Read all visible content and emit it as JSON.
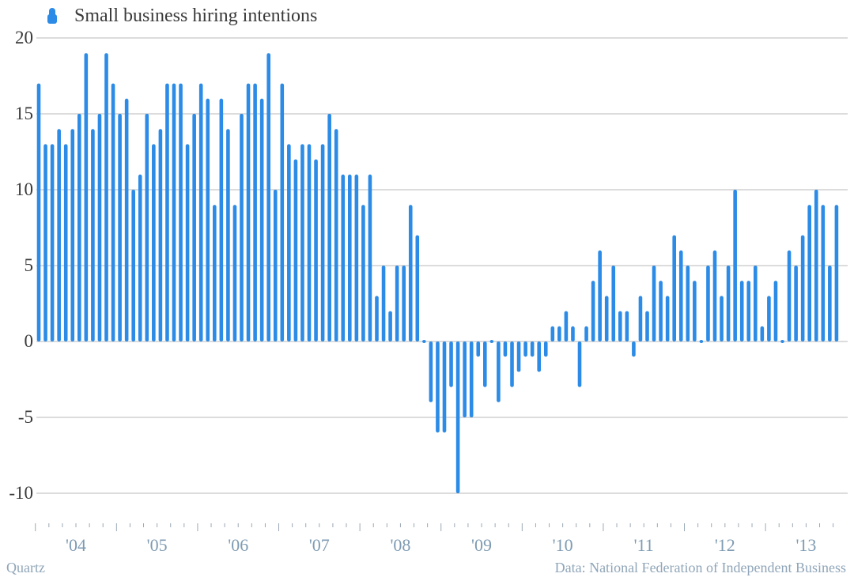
{
  "colors": {
    "bar": "#2b8be6",
    "grid": "#b9b9b9",
    "ytick": "#3a3a3a",
    "xtick": "#7e9bb3",
    "footer": "#8fa5b8"
  },
  "footer": {
    "brand": "Quartz",
    "source": "Data: National Federation of Independent Business"
  },
  "chart_data": {
    "type": "bar",
    "title": "",
    "xlabel": "",
    "ylabel": "",
    "ylim": [
      -10,
      20
    ],
    "yticks": [
      20,
      15,
      10,
      5,
      0,
      -5,
      -10
    ],
    "ytick_labels": [
      "20",
      "15",
      "10",
      "5",
      "0",
      "-5",
      "-10"
    ],
    "grid": true,
    "legend": "top-left",
    "xtick_labels": [
      "'04",
      "'05",
      "'06",
      "'07",
      "'08",
      "'09",
      "'10",
      "'11",
      "'12",
      "'13"
    ],
    "series": [
      {
        "name": "Small business hiring intentions",
        "start": "2004-01",
        "frequency": "monthly",
        "values": [
          17,
          13,
          13,
          14,
          13,
          14,
          15,
          19,
          14,
          15,
          19,
          17,
          15,
          16,
          10,
          11,
          15,
          13,
          14,
          17,
          17,
          17,
          13,
          15,
          17,
          16,
          9,
          16,
          14,
          9,
          15,
          17,
          17,
          16,
          19,
          10,
          17,
          13,
          12,
          13,
          13,
          12,
          13,
          15,
          14,
          11,
          11,
          11,
          9,
          11,
          3,
          5,
          2,
          5,
          5,
          9,
          7,
          0,
          -4,
          -6,
          -6,
          -3,
          -10,
          -5,
          -5,
          -1,
          -3,
          0,
          -4,
          -1,
          -3,
          -2,
          -1,
          -1,
          -2,
          -1,
          1,
          1,
          2,
          1,
          -3,
          1,
          4,
          6,
          3,
          5,
          2,
          2,
          -1,
          3,
          2,
          5,
          4,
          3,
          7,
          6,
          5,
          4,
          0,
          5,
          6,
          3,
          5,
          10,
          4,
          4,
          5,
          1,
          3,
          4,
          0,
          6,
          5,
          7,
          9,
          10,
          9,
          5,
          9
        ]
      }
    ]
  }
}
